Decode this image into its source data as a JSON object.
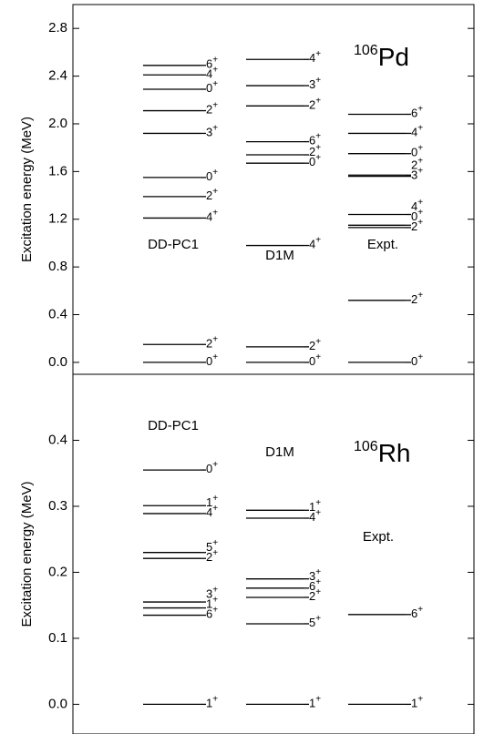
{
  "chart_data": [
    {
      "type": "level-scheme",
      "ylabel": "Excitation energy (MeV)",
      "mass": "106",
      "element": "Pd",
      "ylim": [
        -0.1,
        3.0
      ],
      "yticks": [
        {
          "value": 0,
          "label": "0.0"
        },
        0.4,
        0.8,
        1.2,
        1.6,
        {
          "value": 2,
          "label": "2.0"
        },
        2.4,
        2.8
      ],
      "columns": [
        {
          "name": "DD-PC1",
          "levels": [
            {
              "energy": 0,
              "spin": "0",
              "parity": "+"
            },
            {
              "energy": 0.15,
              "spin": "2",
              "parity": "+"
            },
            {
              "energy": 1.21,
              "spin": "4",
              "parity": "+"
            },
            {
              "energy": 1.39,
              "spin": "2",
              "parity": "+"
            },
            {
              "energy": 1.55,
              "spin": "0",
              "parity": "+"
            },
            {
              "energy": 1.92,
              "spin": "3",
              "parity": "+"
            },
            {
              "energy": 2.11,
              "spin": "2",
              "parity": "+"
            },
            {
              "energy": 2.29,
              "spin": "0",
              "parity": "+"
            },
            {
              "energy": 2.41,
              "spin": "4",
              "parity": "+"
            },
            {
              "energy": 2.49,
              "spin": "6",
              "parity": "+"
            }
          ]
        },
        {
          "name": "D1M",
          "levels": [
            {
              "energy": 0,
              "spin": "0",
              "parity": "+"
            },
            {
              "energy": 0.13,
              "spin": "2",
              "parity": "+"
            },
            {
              "energy": 0.98,
              "spin": "4",
              "parity": "+"
            },
            {
              "energy": 1.67,
              "spin": "0",
              "parity": "+"
            },
            {
              "energy": 1.74,
              "spin": "2",
              "parity": "+"
            },
            {
              "energy": 1.85,
              "spin": "6",
              "parity": "+"
            },
            {
              "energy": 2.15,
              "spin": "2",
              "parity": "+"
            },
            {
              "energy": 2.32,
              "spin": "3",
              "parity": "+"
            },
            {
              "energy": 2.54,
              "spin": "4",
              "parity": "+"
            }
          ]
        },
        {
          "name": "Expt.",
          "levels": [
            {
              "energy": 0,
              "spin": "0",
              "parity": "+"
            },
            {
              "energy": 0.52,
              "spin": "2",
              "parity": "+"
            },
            {
              "energy": 1.13,
              "spin": "2",
              "parity": "+"
            },
            {
              "energy": 1.15,
              "spin": "0",
              "parity": "+"
            },
            {
              "energy": 1.24,
              "spin": "4",
              "parity": "+"
            },
            {
              "energy": 1.56,
              "spin": "3",
              "parity": "+"
            },
            {
              "energy": 1.57,
              "spin": "2",
              "parity": "+"
            },
            {
              "energy": 1.75,
              "spin": "0",
              "parity": "+"
            },
            {
              "energy": 1.92,
              "spin": "4",
              "parity": "+"
            },
            {
              "energy": 2.08,
              "spin": "6",
              "parity": "+"
            }
          ]
        }
      ]
    },
    {
      "type": "level-scheme",
      "ylabel": "Excitation energy (MeV)",
      "mass": "106",
      "element": "Rh",
      "ylim": [
        -0.045,
        0.5
      ],
      "yticks": [
        {
          "value": 0,
          "label": "0.0"
        },
        0.1,
        0.2,
        0.3,
        0.4
      ],
      "columns": [
        {
          "name": "DD-PC1",
          "levels": [
            {
              "energy": 0,
              "spin": "1",
              "parity": "+"
            },
            {
              "energy": 0.135,
              "spin": "6",
              "parity": "+"
            },
            {
              "energy": 0.146,
              "spin": "1",
              "parity": "+"
            },
            {
              "energy": 0.155,
              "spin": "3",
              "parity": "+"
            },
            {
              "energy": 0.221,
              "spin": "2",
              "parity": "+"
            },
            {
              "energy": 0.23,
              "spin": "5",
              "parity": "+"
            },
            {
              "energy": 0.289,
              "spin": "4",
              "parity": "+"
            },
            {
              "energy": 0.301,
              "spin": "1",
              "parity": "+"
            },
            {
              "energy": 0.355,
              "spin": "0",
              "parity": "+"
            }
          ]
        },
        {
          "name": "D1M",
          "levels": [
            {
              "energy": 0,
              "spin": "1",
              "parity": "+"
            },
            {
              "energy": 0.122,
              "spin": "5",
              "parity": "+"
            },
            {
              "energy": 0.162,
              "spin": "2",
              "parity": "+"
            },
            {
              "energy": 0.176,
              "spin": "6",
              "parity": "+"
            },
            {
              "energy": 0.19,
              "spin": "3",
              "parity": "+"
            },
            {
              "energy": 0.282,
              "spin": "4",
              "parity": "+"
            },
            {
              "energy": 0.294,
              "spin": "1",
              "parity": "+"
            }
          ]
        },
        {
          "name": "Expt.",
          "levels": [
            {
              "energy": 0,
              "spin": "1",
              "parity": "+"
            },
            {
              "energy": 0.136,
              "spin": "6",
              "parity": "+"
            }
          ]
        }
      ]
    }
  ]
}
